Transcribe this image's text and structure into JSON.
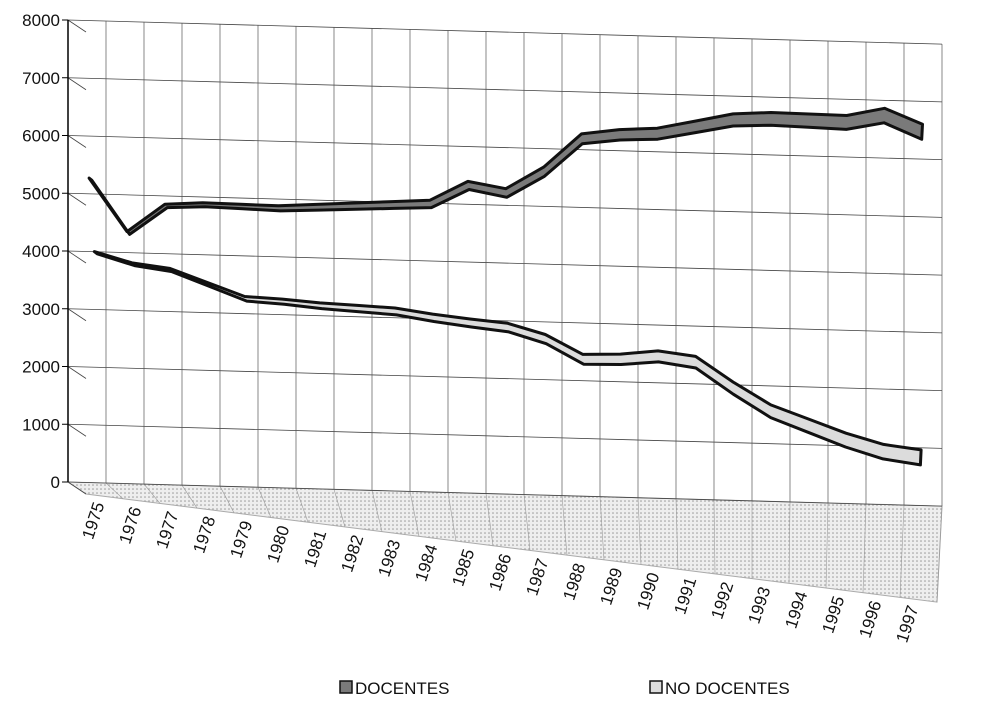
{
  "chart_data": {
    "type": "line3d",
    "categories": [
      "1975",
      "1976",
      "1977",
      "1978",
      "1979",
      "1980",
      "1981",
      "1982",
      "1983",
      "1984",
      "1985",
      "1986",
      "1987",
      "1988",
      "1989",
      "1990",
      "1991",
      "1992",
      "1993",
      "1994",
      "1995",
      "1996",
      "1997"
    ],
    "series": [
      {
        "name": "DOCENTES",
        "color": "#7a7a7a",
        "values": [
          5300,
          4400,
          4900,
          4950,
          4950,
          4950,
          5000,
          5050,
          5100,
          5150,
          5500,
          5400,
          5800,
          6400,
          6500,
          6550,
          6700,
          6850,
          6900,
          6900,
          6900,
          7050,
          6800
        ]
      },
      {
        "name": "NO DOCENTES",
        "color": "#dcdcdc",
        "values": [
          4100,
          3950,
          3900,
          3700,
          3500,
          3500,
          3480,
          3480,
          3480,
          3420,
          3380,
          3350,
          3200,
          2900,
          2950,
          3050,
          3000,
          2600,
          2250,
          2050,
          1850,
          1700,
          1650
        ]
      }
    ],
    "ylim": [
      0,
      8000
    ],
    "yticks": [
      0,
      1000,
      2000,
      3000,
      4000,
      5000,
      6000,
      7000,
      8000
    ],
    "grid": true,
    "legend": "bottom"
  }
}
